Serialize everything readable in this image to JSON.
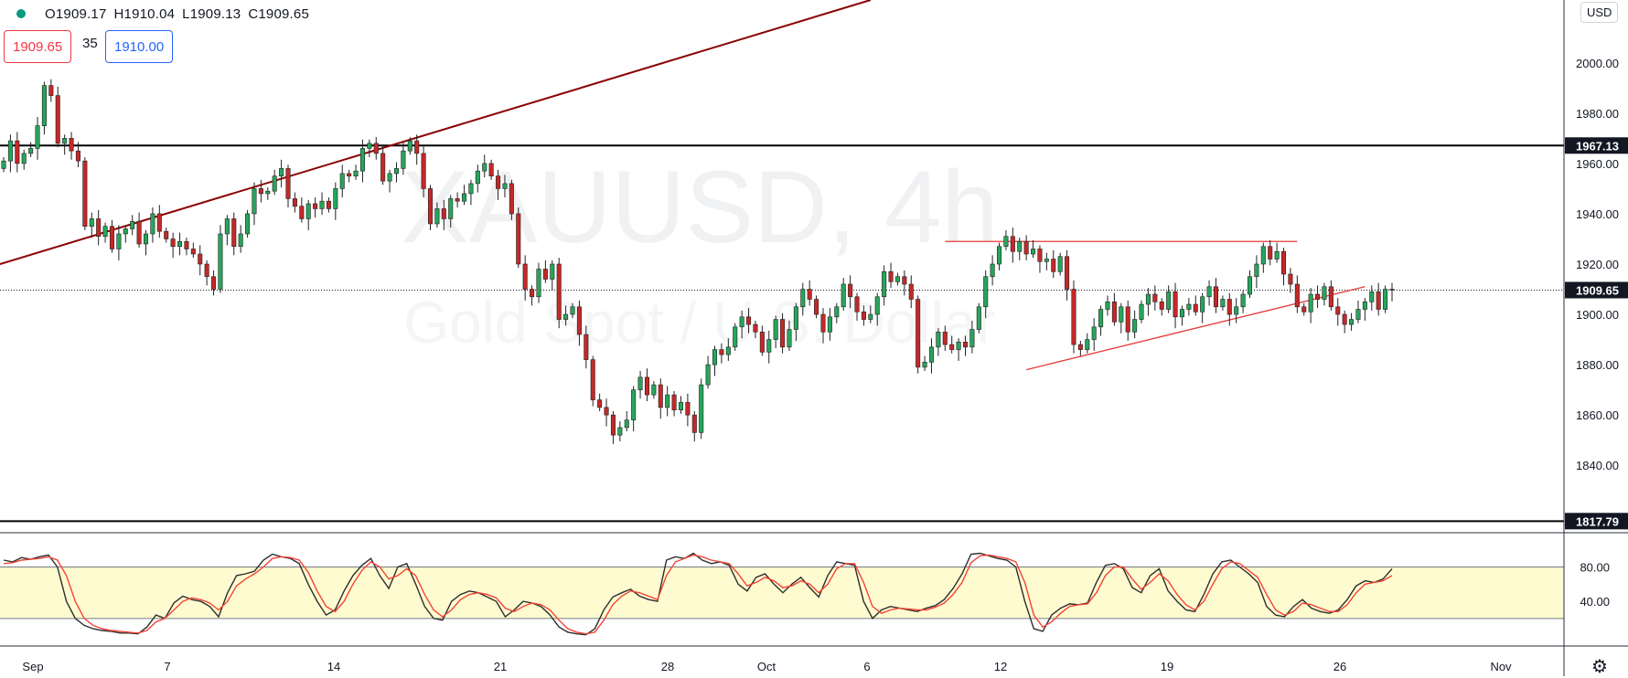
{
  "header": {
    "open": "O1909.17",
    "high": "H1910.04",
    "low": "L1909.13",
    "close": "C1909.65",
    "sell_price": "1909.65",
    "spread": "35",
    "buy_price": "1910.00",
    "currency": "USD"
  },
  "watermark": {
    "symbol": "XAUUSD, 4h",
    "description": "Gold Spot / U.S. Dollar"
  },
  "colors": {
    "up": "#26a65b",
    "down": "#c62828",
    "trendline": "#8b0000",
    "support_line": "#000000",
    "pattern_lines": "#e53935",
    "stoch_k": "#2d2d2d",
    "stoch_d": "#f44336",
    "stoch_band": "#fffbd0"
  },
  "chart_data": [
    {
      "type": "candlestick",
      "symbol": "XAUUSD",
      "interval": "4h",
      "y_axis": {
        "range": [
          1815,
          2025
        ],
        "ticks": [
          1840,
          1860,
          1880,
          1900,
          1920,
          1940,
          1960,
          1980,
          2000
        ]
      },
      "x_axis": {
        "labels": [
          "Sep",
          "7",
          "14",
          "21",
          "28",
          "Oct",
          "6",
          "12",
          "19",
          "26",
          "Nov"
        ]
      },
      "price_labels": [
        "1967.13",
        "1909.65",
        "1817.79"
      ],
      "horizontal_levels": [
        1967.13,
        1817.79
      ],
      "last_price": 1909.65,
      "candle_closes": [
        1961,
        1969,
        1960,
        1964,
        1966,
        1975,
        1991,
        1987,
        1968,
        1970,
        1965,
        1961,
        1935,
        1938,
        1931,
        1935,
        1926,
        1932,
        1934,
        1937,
        1928,
        1932,
        1940,
        1933,
        1930,
        1927,
        1929,
        1926,
        1924,
        1920,
        1915,
        1910,
        1932,
        1938,
        1927,
        1932,
        1940,
        1950,
        1948,
        1949,
        1955,
        1958,
        1946,
        1943,
        1938,
        1944,
        1942,
        1945,
        1942,
        1950,
        1956,
        1955,
        1957,
        1966,
        1968,
        1964,
        1953,
        1956,
        1958,
        1965,
        1969,
        1964,
        1950,
        1936,
        1942,
        1938,
        1946,
        1945,
        1948,
        1952,
        1957,
        1960,
        1955,
        1950,
        1952,
        1940,
        1920,
        1910,
        1907,
        1918,
        1914,
        1920,
        1898,
        1900,
        1903,
        1892,
        1882,
        1866,
        1863,
        1860,
        1852,
        1855,
        1858,
        1870,
        1875,
        1868,
        1872,
        1863,
        1868,
        1862,
        1865,
        1860,
        1853,
        1872,
        1880,
        1886,
        1884,
        1887,
        1895,
        1899,
        1896,
        1893,
        1885,
        1890,
        1898,
        1887,
        1894,
        1903,
        1910,
        1906,
        1900,
        1893,
        1899,
        1903,
        1912,
        1907,
        1901,
        1898,
        1900,
        1907,
        1917,
        1913,
        1915,
        1912,
        1906,
        1879,
        1881,
        1887,
        1893,
        1888,
        1886,
        1889,
        1887,
        1894,
        1903,
        1915,
        1920,
        1927,
        1931,
        1925,
        1929,
        1924,
        1926,
        1921,
        1922,
        1917,
        1923,
        1910,
        1888,
        1886,
        1890,
        1895,
        1902,
        1905,
        1897,
        1903,
        1893,
        1898,
        1904,
        1908,
        1905,
        1902,
        1909,
        1899,
        1902,
        1904,
        1901,
        1907,
        1911,
        1903,
        1906,
        1900,
        1903,
        1908,
        1915,
        1920,
        1927,
        1922,
        1925,
        1916,
        1912,
        1903,
        1901,
        1908,
        1906,
        1911,
        1903,
        1900,
        1896,
        1898,
        1902,
        1905,
        1909,
        1902,
        1910,
        1909.65
      ]
    },
    {
      "type": "line",
      "name": "Stochastic",
      "y_axis": {
        "range": [
          -10,
          120
        ],
        "ticks": [
          40,
          80
        ]
      },
      "band": [
        20,
        80
      ],
      "series": [
        {
          "key": "k",
          "values": [
            88,
            86,
            91,
            89,
            92,
            94,
            80,
            40,
            20,
            12,
            8,
            6,
            5,
            3,
            3,
            2,
            10,
            24,
            20,
            38,
            46,
            42,
            40,
            34,
            22,
            50,
            70,
            72,
            75,
            88,
            95,
            92,
            90,
            84,
            60,
            40,
            24,
            30,
            52,
            70,
            82,
            90,
            70,
            55,
            80,
            84,
            60,
            34,
            20,
            18,
            40,
            48,
            52,
            50,
            45,
            40,
            22,
            30,
            40,
            38,
            34,
            24,
            10,
            4,
            2,
            1,
            8,
            30,
            45,
            50,
            54,
            46,
            42,
            40,
            88,
            92,
            90,
            96,
            88,
            84,
            86,
            82,
            60,
            52,
            68,
            72,
            60,
            50,
            60,
            68,
            56,
            45,
            70,
            86,
            84,
            82,
            40,
            20,
            30,
            34,
            32,
            30,
            28,
            32,
            35,
            42,
            55,
            72,
            95,
            96,
            93,
            90,
            88,
            80,
            40,
            8,
            5,
            24,
            32,
            37,
            36,
            38,
            62,
            82,
            84,
            78,
            56,
            50,
            70,
            78,
            52,
            40,
            30,
            28,
            48,
            72,
            86,
            88,
            80,
            72,
            62,
            34,
            24,
            22,
            34,
            42,
            32,
            28,
            26,
            30,
            42,
            58,
            64,
            62,
            66,
            78
          ]
        },
        {
          "key": "d",
          "values": [
            84,
            85,
            88,
            89,
            90,
            92,
            88,
            70,
            40,
            20,
            12,
            8,
            6,
            5,
            4,
            3,
            6,
            16,
            20,
            30,
            40,
            44,
            42,
            38,
            30,
            40,
            58,
            66,
            72,
            80,
            90,
            92,
            91,
            88,
            74,
            52,
            34,
            28,
            40,
            60,
            76,
            86,
            80,
            66,
            70,
            78,
            70,
            48,
            30,
            22,
            30,
            42,
            48,
            50,
            48,
            44,
            32,
            28,
            34,
            38,
            36,
            30,
            18,
            8,
            4,
            2,
            4,
            18,
            36,
            46,
            52,
            50,
            46,
            42,
            70,
            86,
            90,
            94,
            92,
            88,
            86,
            84,
            72,
            58,
            62,
            68,
            64,
            56,
            58,
            64,
            60,
            50,
            60,
            78,
            84,
            84,
            62,
            34,
            26,
            30,
            32,
            31,
            30,
            30,
            33,
            38,
            48,
            62,
            85,
            93,
            94,
            92,
            90,
            86,
            62,
            24,
            10,
            16,
            26,
            34,
            36,
            37,
            50,
            70,
            80,
            80,
            66,
            54,
            62,
            72,
            64,
            48,
            36,
            30,
            40,
            60,
            78,
            86,
            84,
            76,
            68,
            48,
            30,
            24,
            28,
            38,
            36,
            32,
            28,
            28,
            36,
            50,
            60,
            62,
            64,
            70
          ]
        }
      ]
    }
  ]
}
